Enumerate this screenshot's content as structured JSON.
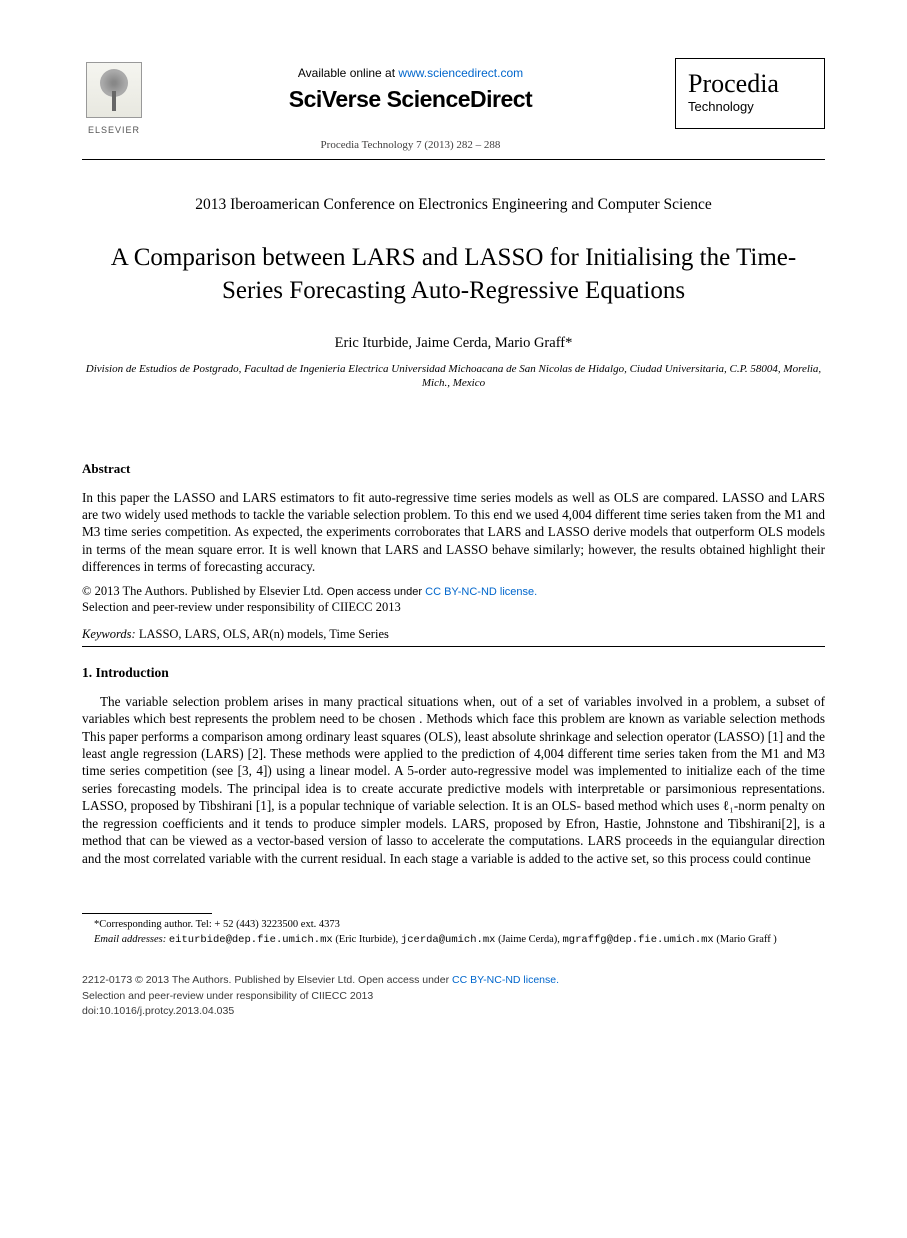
{
  "header": {
    "available_prefix": "Available online at ",
    "available_url": "www.sciencedirect.com",
    "sciverse": "SciVerse ScienceDirect",
    "citation": "Procedia Technology 7 (2013) 282 – 288",
    "elsevier_label": "ELSEVIER",
    "procedia_title": "Procedia",
    "procedia_sub": "Technology"
  },
  "conference": "2013 Iberoamerican Conference on Electronics Engineering and Computer Science",
  "title": "A Comparison between LARS and LASSO for Initialising the Time-Series Forecasting Auto-Regressive Equations",
  "authors": "Eric Iturbide, Jaime Cerda, Mario Graff*",
  "affiliation": "Division de Estudios de Postgrado, Facultad de Ingenieria Electrica Universidad Michoacana de San Nicolas de Hidalgo, Ciudad Universitaria, C.P. 58004, Morelia, Mich., Mexico",
  "abstract_head": "Abstract",
  "abstract_body": "In this paper the LASSO and LARS estimators to fit auto-regressive time series models as well as OLS are compared. LASSO and LARS are two widely used methods to tackle the variable selection problem. To this end we used 4,004 different time series taken from the M1 and M3 time series competition. As expected, the experiments corroborates that LARS and LASSO derive models that outperform OLS models in terms of the mean square error. It is well known that LARS and LASSO behave similarly; however, the results obtained highlight their differences in terms of forecasting accuracy.",
  "copyright1_prefix": "© 2013 The Authors. Published by Elsevier Ltd. ",
  "copyright1_small": "Open access under ",
  "copyright1_link": "CC BY-NC-ND license.",
  "copyright2": "Selection and peer-review under responsibility of CIIECC 2013",
  "keywords_label": "Keywords:",
  "keywords_value": "   LASSO, LARS, OLS, AR(n) models, Time Series",
  "intro_head": "1. Introduction",
  "intro_body": "The variable selection problem arises in many practical situations when, out of a set of variables involved in a problem, a subset of variables which best represents the problem need to be chosen . Methods which face this problem are known as variable selection methods This paper performs a comparison among ordinary least squares (OLS), least absolute shrinkage and selection operator (LASSO) [1] and the least angle regression (LARS) [2]. These methods were applied to the prediction of 4,004 different time series taken from the M1 and M3 time series competition (see [3, 4]) using a linear model. A 5-order auto-regressive model was implemented to initialize each of the time series forecasting models. The principal idea is to create accurate predictive models with interpretable or parsimonious representations. LASSO, proposed by Tibshirani [1], is a popular technique of variable selection. It is an OLS- based method which uses ℓ₁-norm penalty on the regression coefficients and it tends to produce simpler models. LARS, proposed by Efron, Hastie, Johnstone and Tibshirani[2], is a method that can be viewed as a vector-based version of lasso to accelerate the computations. LARS proceeds in the equiangular direction and the most correlated variable with the current residual. In each stage a variable is added to the active set, so this process could continue",
  "footnote1": "*Corresponding author. Tel: + 52 (443) 3223500 ext. 4373",
  "footnote2_label": "Email addresses: ",
  "footnote2_e1": "eiturbide@dep.fie.umich.mx",
  "footnote2_n1": " (Eric Iturbide), ",
  "footnote2_e2": "jcerda@umich.mx",
  "footnote2_n2": " (Jaime Cerda), ",
  "footnote2_e3": "mgraffg@dep.fie.umich.mx",
  "footnote2_n3": " (Mario Graff )",
  "bottom": {
    "line1_prefix": "2212-0173 © 2013 The Authors. Published by Elsevier Ltd. Open access under ",
    "line1_link": "CC BY-NC-ND license.",
    "line2": "Selection and peer-review under responsibility of CIIECC 2013",
    "line3": "doi:10.1016/j.protcy.2013.04.035"
  },
  "colors": {
    "link": "#0066cc",
    "text": "#000000",
    "gray": "#3a3a3a"
  }
}
